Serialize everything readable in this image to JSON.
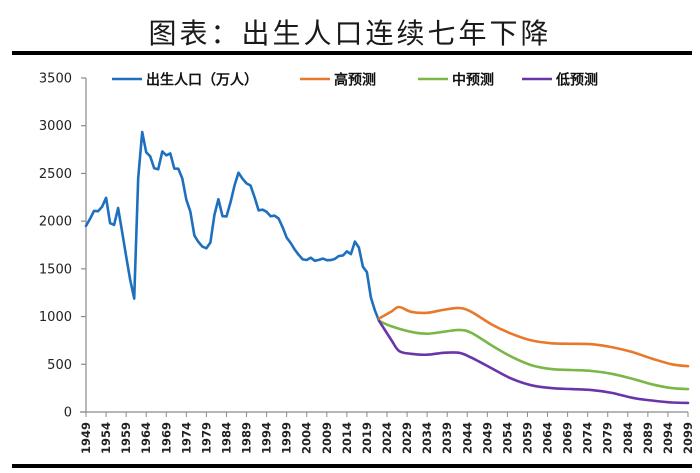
{
  "page": {
    "title": "图表：出生人口连续七年下降"
  },
  "chart_data": {
    "type": "line",
    "title": "图表：出生人口连续七年下降",
    "xlabel": "",
    "ylabel": "",
    "ylim": [
      0,
      3500
    ],
    "xlim": [
      1949,
      2099
    ],
    "yticks": [
      0,
      500,
      1000,
      1500,
      2000,
      2500,
      3000,
      3500
    ],
    "ytick_labels": [
      "0",
      "500",
      "1000",
      "1500",
      "2000",
      "2500",
      "3000",
      "3500"
    ],
    "xtick_labels": [
      "1949",
      "1954",
      "1959",
      "1964",
      "1969",
      "1974",
      "1979",
      "1984",
      "1989",
      "1994",
      "1999",
      "2004",
      "2009",
      "2014",
      "2019",
      "2024",
      "2029",
      "2034",
      "2039",
      "2044",
      "2049",
      "2054",
      "2059",
      "2064",
      "2069",
      "2074",
      "2079",
      "2084",
      "2089",
      "2094",
      "2099"
    ],
    "grid": false,
    "legend_position": "top",
    "series": [
      {
        "name": "出生人口（万人）",
        "color": "#1f6fbf",
        "x": [
          1949,
          1950,
          1951,
          1952,
          1953,
          1954,
          1955,
          1956,
          1957,
          1958,
          1959,
          1960,
          1961,
          1962,
          1963,
          1964,
          1965,
          1966,
          1967,
          1968,
          1969,
          1970,
          1971,
          1972,
          1973,
          1974,
          1975,
          1976,
          1977,
          1978,
          1979,
          1980,
          1981,
          1982,
          1983,
          1984,
          1985,
          1986,
          1987,
          1988,
          1989,
          1990,
          1991,
          1992,
          1993,
          1994,
          1995,
          1996,
          1997,
          1998,
          1999,
          2000,
          2001,
          2002,
          2003,
          2004,
          2005,
          2006,
          2007,
          2008,
          2009,
          2010,
          2011,
          2012,
          2013,
          2014,
          2015,
          2016,
          2017,
          2018,
          2019,
          2020,
          2021,
          2022
        ],
        "values": [
          1950,
          2023,
          2107,
          2104,
          2151,
          2245,
          1978,
          1961,
          2138,
          1889,
          1635,
          1389,
          1188,
          2451,
          2934,
          2721,
          2679,
          2554,
          2543,
          2731,
          2690,
          2710,
          2551,
          2550,
          2447,
          2226,
          2102,
          1849,
          1783,
          1733,
          1715,
          1776,
          2064,
          2230,
          2052,
          2050,
          2196,
          2374,
          2508,
          2445,
          2396,
          2374,
          2250,
          2113,
          2120,
          2098,
          2052,
          2057,
          2028,
          1934,
          1827,
          1771,
          1702,
          1647,
          1599,
          1593,
          1617,
          1584,
          1594,
          1608,
          1591,
          1592,
          1604,
          1635,
          1640,
          1683,
          1655,
          1786,
          1723,
          1523,
          1465,
          1200,
          1062,
          956
        ]
      },
      {
        "name": "高预测",
        "color": "#e8782a",
        "x": [
          2022,
          2025,
          2027,
          2030,
          2034,
          2038,
          2042,
          2045,
          2050,
          2055,
          2060,
          2065,
          2070,
          2075,
          2080,
          2085,
          2090,
          2095,
          2099
        ],
        "values": [
          980,
          1050,
          1100,
          1050,
          1040,
          1070,
          1090,
          1050,
          920,
          820,
          750,
          720,
          715,
          710,
          680,
          630,
          560,
          500,
          480
        ]
      },
      {
        "name": "中预测",
        "color": "#7ab648",
        "x": [
          2022,
          2025,
          2030,
          2034,
          2038,
          2042,
          2045,
          2050,
          2055,
          2060,
          2065,
          2070,
          2075,
          2080,
          2085,
          2090,
          2095,
          2099
        ],
        "values": [
          956,
          900,
          840,
          820,
          840,
          860,
          830,
          700,
          580,
          490,
          450,
          440,
          430,
          400,
          350,
          290,
          250,
          240
        ]
      },
      {
        "name": "低预测",
        "color": "#6a35a8",
        "x": [
          2022,
          2025,
          2027,
          2030,
          2034,
          2038,
          2042,
          2045,
          2050,
          2055,
          2060,
          2065,
          2070,
          2075,
          2080,
          2085,
          2090,
          2095,
          2099
        ],
        "values": [
          956,
          760,
          640,
          610,
          600,
          620,
          620,
          570,
          460,
          350,
          280,
          250,
          240,
          230,
          200,
          150,
          120,
          100,
          95
        ]
      }
    ]
  }
}
